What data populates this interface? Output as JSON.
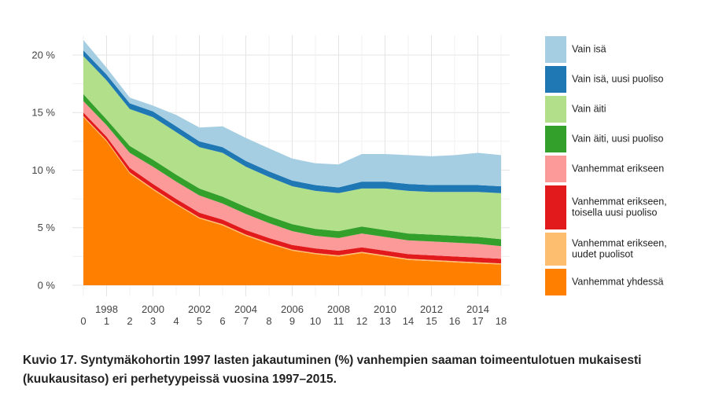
{
  "caption": "Kuvio 17. Syntymäkohortin 1997 lasten jakautuminen (%) vanhempien saaman toimeentulotuen mukaisesti (kuukausitaso) eri perhetyypeissä vuosina 1997–2015.",
  "chart_data": {
    "type": "area",
    "stacked": true,
    "x": [
      1997,
      1998,
      1999,
      2000,
      2001,
      2002,
      2003,
      2004,
      2005,
      2006,
      2007,
      2008,
      2009,
      2010,
      2011,
      2012,
      2013,
      2014,
      2015
    ],
    "x_ticks_year": [
      "1998",
      "2000",
      "2002",
      "2004",
      "2006",
      "2008",
      "2010",
      "2012",
      "2014"
    ],
    "x_ticks_age": [
      "0",
      "1",
      "2",
      "3",
      "4",
      "5",
      "6",
      "7",
      "8",
      "9",
      "10",
      "11",
      "12",
      "13",
      "14",
      "15",
      "16",
      "17",
      "18"
    ],
    "y_ticks": [
      "0 %",
      "5 %",
      "10 %",
      "15 %",
      "20 %"
    ],
    "ylim": [
      0,
      21.5
    ],
    "grid": true,
    "legend_position": "right",
    "series": [
      {
        "name": "Vanhemmat yhdessä",
        "color": "#ff7f00",
        "values": [
          14.6,
          12.5,
          9.7,
          8.3,
          7.0,
          5.8,
          5.2,
          4.3,
          3.6,
          3.0,
          2.7,
          2.5,
          2.8,
          2.5,
          2.2,
          2.1,
          2.0,
          1.9,
          1.8
        ]
      },
      {
        "name": "Vanhemmat erikseen, uudet puolisot",
        "color": "#fdbf6f",
        "values": [
          0.1,
          0.1,
          0.1,
          0.1,
          0.1,
          0.1,
          0.1,
          0.1,
          0.1,
          0.1,
          0.1,
          0.1,
          0.1,
          0.1,
          0.1,
          0.1,
          0.1,
          0.1,
          0.1
        ]
      },
      {
        "name": "Vanhemmat erikseen, toisella uusi puoliso",
        "color": "#e31a1c",
        "values": [
          0.3,
          0.3,
          0.4,
          0.4,
          0.4,
          0.4,
          0.4,
          0.4,
          0.4,
          0.4,
          0.4,
          0.4,
          0.4,
          0.4,
          0.4,
          0.4,
          0.4,
          0.4,
          0.4
        ]
      },
      {
        "name": "Vanhemmat erikseen",
        "color": "#fb9a99",
        "values": [
          1.0,
          1.0,
          1.3,
          1.5,
          1.5,
          1.5,
          1.4,
          1.4,
          1.3,
          1.2,
          1.1,
          1.1,
          1.2,
          1.2,
          1.2,
          1.2,
          1.2,
          1.2,
          1.1
        ]
      },
      {
        "name": "Vain äiti, uusi puoliso",
        "color": "#33a02c",
        "values": [
          0.6,
          0.5,
          0.6,
          0.6,
          0.6,
          0.6,
          0.6,
          0.6,
          0.6,
          0.6,
          0.6,
          0.6,
          0.6,
          0.6,
          0.6,
          0.6,
          0.6,
          0.6,
          0.6
        ]
      },
      {
        "name": "Vain äiti",
        "color": "#b2df8a",
        "values": [
          3.3,
          3.4,
          3.2,
          3.7,
          3.7,
          3.6,
          3.8,
          3.5,
          3.4,
          3.3,
          3.3,
          3.3,
          3.3,
          3.6,
          3.7,
          3.7,
          3.8,
          3.9,
          4.0
        ]
      },
      {
        "name": "Vain isä, uusi puoliso",
        "color": "#1f78b4",
        "values": [
          0.5,
          0.5,
          0.5,
          0.5,
          0.5,
          0.5,
          0.5,
          0.5,
          0.5,
          0.5,
          0.5,
          0.5,
          0.6,
          0.6,
          0.6,
          0.6,
          0.6,
          0.6,
          0.6
        ]
      },
      {
        "name": "Vain isä",
        "color": "#a6cee3",
        "values": [
          0.9,
          0.6,
          0.5,
          0.5,
          1.0,
          1.2,
          1.8,
          2.0,
          2.0,
          1.9,
          1.9,
          2.0,
          2.4,
          2.4,
          2.5,
          2.5,
          2.6,
          2.8,
          2.7
        ]
      }
    ]
  },
  "legend": [
    {
      "label": "Vain isä",
      "color": "#a6cee3"
    },
    {
      "label": "Vain isä, uusi puoliso",
      "color": "#1f78b4"
    },
    {
      "label": "Vain äiti",
      "color": "#b2df8a"
    },
    {
      "label": "Vain äiti, uusi puoliso",
      "color": "#33a02c"
    },
    {
      "label": "Vanhemmat erikseen",
      "color": "#fb9a99"
    },
    {
      "label": "Vanhemmat erikseen, toisella uusi puoliso",
      "color": "#e31a1c"
    },
    {
      "label": "Vanhemmat erikseen, uudet puolisot",
      "color": "#fdbf6f"
    },
    {
      "label": "Vanhemmat yhdessä",
      "color": "#ff7f00"
    }
  ]
}
